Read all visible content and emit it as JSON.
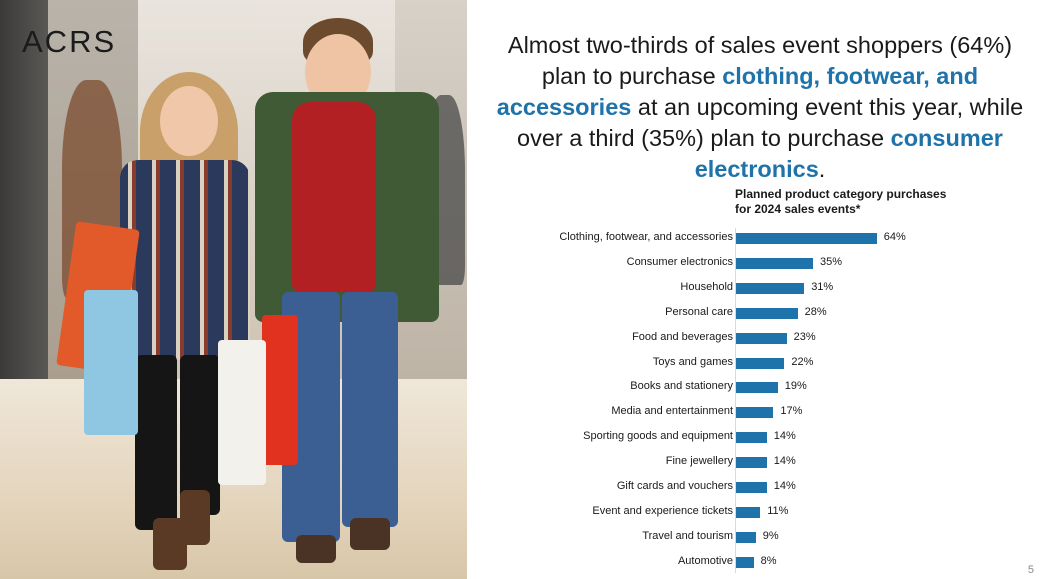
{
  "brand": "ACRS",
  "headline": {
    "part1": "Almost two-thirds of sales event shoppers (64%) plan to purchase ",
    "highlight1": "clothing, footwear, and accessories",
    "part2": " at an upcoming event this year, while over a third (35%) plan to purchase ",
    "highlight2": "consumer electronics",
    "part3": "."
  },
  "colors": {
    "accent": "#1f73ab",
    "text": "#1a1a1a"
  },
  "chart_data": {
    "type": "bar",
    "orientation": "horizontal",
    "title": "Planned product category purchases for 2024 sales events*",
    "title_line1": "Planned product category purchases",
    "title_line2": "for 2024 sales events*",
    "categories": [
      "Clothing, footwear, and accessories",
      "Consumer electronics",
      "Household",
      "Personal care",
      "Food and beverages",
      "Toys and games",
      "Books and stationery",
      "Media and entertainment",
      "Sporting goods and equipment",
      "Fine jewellery",
      "Gift cards and vouchers",
      "Event and experience tickets",
      "Travel and tourism",
      "Automotive"
    ],
    "values": [
      64,
      35,
      31,
      28,
      23,
      22,
      19,
      17,
      14,
      14,
      14,
      11,
      9,
      8
    ],
    "value_labels": [
      "64%",
      "35%",
      "31%",
      "28%",
      "23%",
      "22%",
      "19%",
      "17%",
      "14%",
      "14%",
      "14%",
      "11%",
      "9%",
      "8%"
    ],
    "unit": "%",
    "grid": false,
    "legend": "none"
  },
  "page_number": "5"
}
